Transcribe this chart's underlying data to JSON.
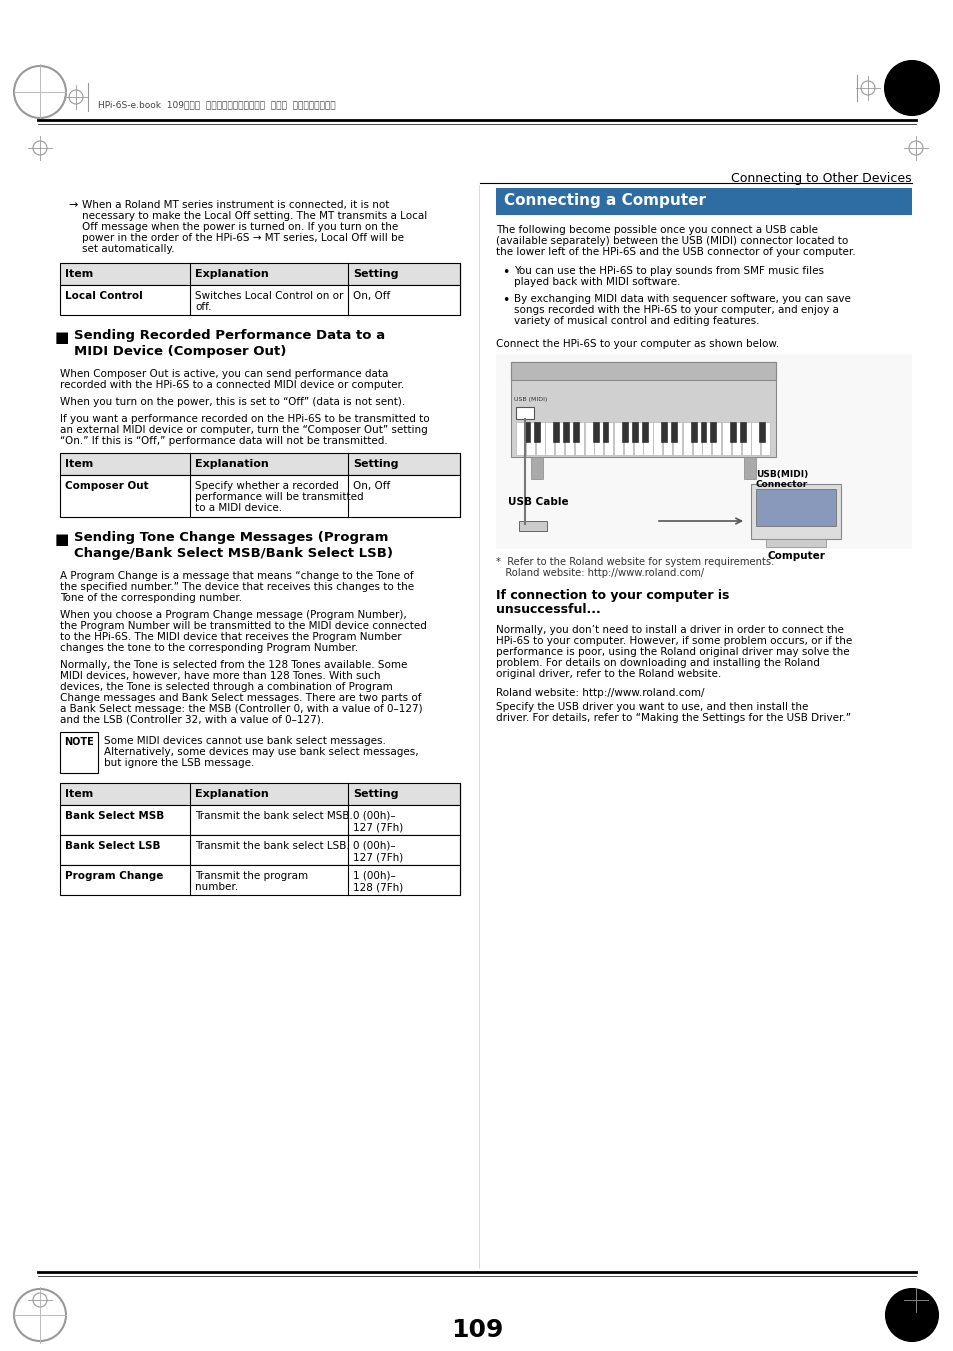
{
  "bg_color": "#ffffff",
  "page_number": "109",
  "header_text": "Connecting to Other Devices",
  "top_bar_text": "HPi-6S-e.book  109ページ  ２００７年１１月１９日  月曜日  午前１０時３６分",
  "bullet_text": "When a Roland MT series instrument is connected, it is not\nnecessary to make the Local Off setting. The MT transmits a Local\nOff message when the power is turned on. If you turn on the\npower in the order of the HPi-6S → MT series, Local Off will be\nset automatically.",
  "table1_headers": [
    "Item",
    "Explanation",
    "Setting"
  ],
  "table1_rows": [
    [
      "Local Control",
      "Switches Local Control on or\noff.",
      "On, Off"
    ]
  ],
  "heading1": "Sending Recorded Performance Data to a\nMIDI Device (Composer Out)",
  "para1": "When Composer Out is active, you can send performance data\nrecorded with the HPi-6S to a connected MIDI device or computer.",
  "para2": "When you turn on the power, this is set to “Off” (data is not sent).",
  "para3": "If you want a performance recorded on the HPi-6S to be transmitted to\nan external MIDI device or computer, turn the “Composer Out” setting\n“On.” If this is “Off,” performance data will not be transmitted.",
  "table2_headers": [
    "Item",
    "Explanation",
    "Setting"
  ],
  "table2_rows": [
    [
      "Composer Out",
      "Specify whether a recorded\nperformance will be transmitted\nto a MIDI device.",
      "On, Off"
    ]
  ],
  "heading2": "Sending Tone Change Messages (Program\nChange/Bank Select MSB/Bank Select LSB)",
  "para4": "A Program Change is a message that means “change to the Tone of\nthe specified number.” The device that receives this changes to the\nTone of the corresponding number.",
  "para5": "When you choose a Program Change message (Program Number),\nthe Program Number will be transmitted to the MIDI device connected\nto the HPi-6S. The MIDI device that receives the Program Number\nchanges the tone to the corresponding Program Number.",
  "para6": "Normally, the Tone is selected from the 128 Tones available. Some\nMIDI devices, however, have more than 128 Tones. With such\ndevices, the Tone is selected through a combination of Program\nChange messages and Bank Select messages. There are two parts of\na Bank Select message: the MSB (Controller 0, with a value of 0–127)\nand the LSB (Controller 32, with a value of 0–127).",
  "note_text": "Some MIDI devices cannot use bank select messages.\nAlternatively, some devices may use bank select messages,\nbut ignore the LSB message.",
  "table3_headers": [
    "Item",
    "Explanation",
    "Setting"
  ],
  "table3_rows": [
    [
      "Bank Select MSB",
      "Transmit the bank select MSB.",
      "0 (00h)–\n127 (7Fh)"
    ],
    [
      "Bank Select LSB",
      "Transmit the bank select LSB.",
      "0 (00h)–\n127 (7Fh)"
    ],
    [
      "Program Change",
      "Transmit the program\nnumber.",
      "1 (00h)–\n128 (7Fh)"
    ]
  ],
  "right_banner_text": "Connecting a Computer",
  "right_banner_bg": "#2e6da4",
  "right_banner_fg": "#ffffff",
  "right_intro": "The following become possible once you connect a USB cable\n(available separately) between the USB (MIDI) connector located to\nthe lower left of the HPi-6S and the USB connector of your computer.",
  "right_bullets": [
    "You can use the HPi-6S to play sounds from SMF music files\nplayed back with MIDI software.",
    "By exchanging MIDI data with sequencer software, you can save\nsongs recorded with the HPi-6S to your computer, and enjoy a\nvariety of musical control and editing features."
  ],
  "connect_label": "Connect the HPi-6S to your computer as shown below.",
  "usb_cable_label": "USB Cable",
  "usb_midi_label": "USB(MIDI)\nConnector",
  "computer_label": "Computer",
  "footnote": "*  Refer to the Roland website for system requirements.\n   Roland website: http://www.roland.com/",
  "subheading": "If connection to your computer is\nunsuccessful...",
  "sub_para1": "Normally, you don’t need to install a driver in order to connect the\nHPi-6S to your computer. However, if some problem occurs, or if the\nperformance is poor, using the Roland original driver may solve the\nproblem. For details on downloading and installing the Roland\noriginal driver, refer to the Roland website.",
  "roland_website": "Roland website: http://www.roland.com/",
  "sub_para2": "Specify the USB driver you want to use, and then install the\ndriver. For details, refer to “Making the Settings for the USB Driver.”"
}
